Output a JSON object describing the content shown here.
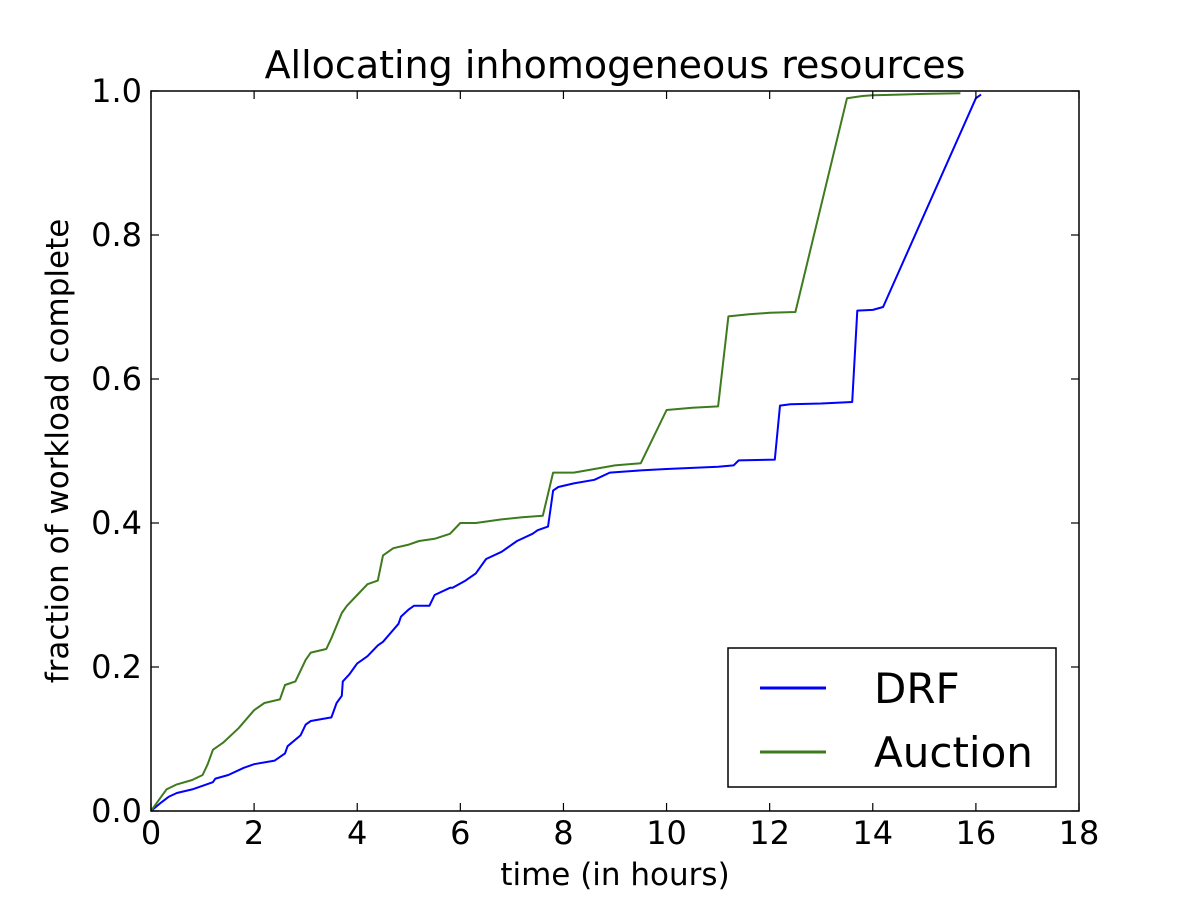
{
  "chart_data": {
    "type": "line",
    "title": "Allocating inhomogeneous resources",
    "xlabel": "time (in hours)",
    "ylabel": "fraction of workload complete",
    "xlim": [
      0,
      18
    ],
    "ylim": [
      0,
      1.0
    ],
    "xticks": [
      "0",
      "2",
      "4",
      "6",
      "8",
      "10",
      "12",
      "14",
      "16",
      "18"
    ],
    "yticks": [
      "0.0",
      "0.2",
      "0.4",
      "0.6",
      "0.8",
      "1.0"
    ],
    "grid": false,
    "legend": {
      "placement": "lower-right",
      "entries": [
        "DRF",
        "Auction"
      ]
    },
    "series": [
      {
        "name": "DRF",
        "color": "#0000ff",
        "x": [
          0,
          0.2,
          0.35,
          0.5,
          0.8,
          1.0,
          1.2,
          1.25,
          1.5,
          1.8,
          2.0,
          2.4,
          2.6,
          2.65,
          2.9,
          3.0,
          3.1,
          3.5,
          3.6,
          3.7,
          3.72,
          3.85,
          3.95,
          4.0,
          4.1,
          4.2,
          4.4,
          4.5,
          4.8,
          4.85,
          5.0,
          5.1,
          5.4,
          5.5,
          5.8,
          5.85,
          6.1,
          6.3,
          6.5,
          6.8,
          7.1,
          7.4,
          7.5,
          7.7,
          7.75,
          7.8,
          7.9,
          8.2,
          8.6,
          8.9,
          9.5,
          10.0,
          11.0,
          11.3,
          11.4,
          12.1,
          12.2,
          12.4,
          13.0,
          13.6,
          13.7,
          14.0,
          14.2,
          16.0,
          16.1
        ],
        "y": [
          0,
          0.012,
          0.02,
          0.025,
          0.03,
          0.035,
          0.04,
          0.045,
          0.05,
          0.06,
          0.065,
          0.07,
          0.08,
          0.09,
          0.105,
          0.12,
          0.125,
          0.13,
          0.15,
          0.16,
          0.18,
          0.19,
          0.2,
          0.205,
          0.21,
          0.215,
          0.23,
          0.235,
          0.26,
          0.27,
          0.28,
          0.285,
          0.285,
          0.3,
          0.31,
          0.31,
          0.32,
          0.33,
          0.35,
          0.36,
          0.375,
          0.385,
          0.39,
          0.395,
          0.42,
          0.445,
          0.45,
          0.455,
          0.46,
          0.47,
          0.473,
          0.475,
          0.478,
          0.48,
          0.487,
          0.488,
          0.563,
          0.565,
          0.566,
          0.568,
          0.695,
          0.696,
          0.7,
          0.99,
          0.995
        ]
      },
      {
        "name": "Auction",
        "color": "#3e7a1e",
        "x": [
          0,
          0.2,
          0.3,
          0.5,
          0.8,
          1.0,
          1.1,
          1.2,
          1.4,
          1.7,
          2.0,
          2.2,
          2.5,
          2.6,
          2.8,
          3.0,
          3.1,
          3.4,
          3.5,
          3.7,
          3.8,
          4.0,
          4.2,
          4.4,
          4.5,
          4.7,
          5.0,
          5.2,
          5.5,
          5.8,
          6.0,
          6.3,
          6.8,
          7.2,
          7.6,
          7.8,
          8.2,
          8.6,
          9.0,
          9.5,
          10.0,
          10.5,
          11.0,
          11.2,
          11.6,
          12.0,
          12.5,
          13.5,
          13.8,
          14.0,
          14.5,
          15.0,
          15.7
        ],
        "y": [
          0,
          0.02,
          0.03,
          0.037,
          0.043,
          0.05,
          0.065,
          0.085,
          0.095,
          0.115,
          0.14,
          0.15,
          0.155,
          0.175,
          0.18,
          0.21,
          0.22,
          0.225,
          0.24,
          0.275,
          0.285,
          0.3,
          0.315,
          0.32,
          0.355,
          0.365,
          0.37,
          0.375,
          0.378,
          0.385,
          0.4,
          0.4,
          0.405,
          0.408,
          0.41,
          0.47,
          0.47,
          0.475,
          0.48,
          0.483,
          0.557,
          0.56,
          0.562,
          0.687,
          0.69,
          0.692,
          0.693,
          0.99,
          0.993,
          0.994,
          0.995,
          0.996,
          0.997
        ]
      }
    ]
  }
}
